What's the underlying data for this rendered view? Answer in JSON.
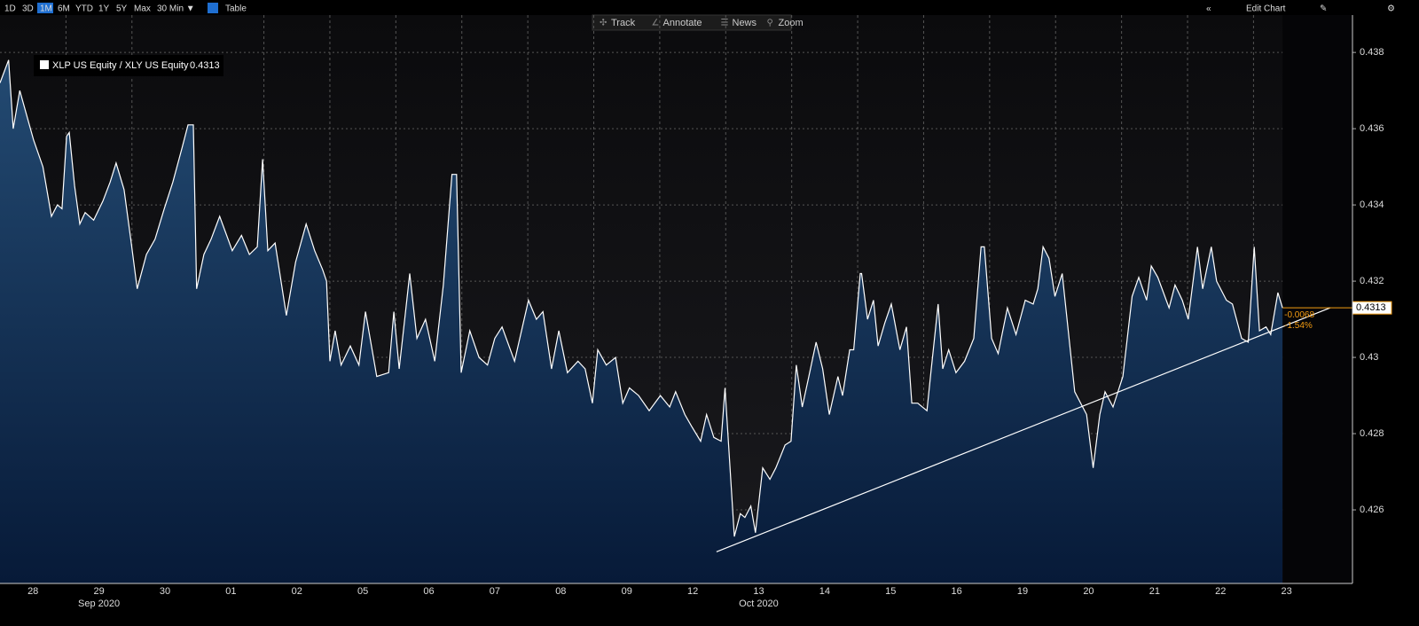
{
  "toolbar": {
    "ranges": [
      "1D",
      "3D",
      "1M",
      "6M",
      "YTD",
      "1Y",
      "5Y",
      "Max",
      "30 Min ▼"
    ],
    "active": "1M",
    "table": "Table",
    "tools": [
      "Track",
      "Annotate",
      "News",
      "Zoom"
    ],
    "edit": "Edit Chart"
  },
  "chart_data": {
    "type": "line",
    "fill": true,
    "series": [
      {
        "name": "XLP US Equity / XLY US Equity",
        "color": "#ffffff",
        "last_value": 0.4313,
        "x": [
          0,
          0.13,
          0.2,
          0.3,
          0.51,
          0.65,
          0.78,
          0.87,
          0.94,
          1.01,
          1.05,
          1.13,
          1.21,
          1.29,
          1.42,
          1.56,
          1.67,
          1.76,
          1.88,
          1.99,
          2.08,
          2.22,
          2.35,
          2.49,
          2.62,
          2.76,
          2.85,
          2.93,
          2.98,
          3.09,
          3.2,
          3.33,
          3.52,
          3.66,
          3.78,
          3.9,
          3.98,
          4.06,
          4.17,
          4.34,
          4.48,
          4.64,
          4.77,
          4.89,
          4.95,
          5,
          5.08,
          5.17,
          5.31,
          5.44,
          5.54,
          5.71,
          5.89,
          5.97,
          6.05,
          6.14,
          6.21,
          6.32,
          6.45,
          6.59,
          6.72,
          6.85,
          6.92,
          6.99,
          7.12,
          7.26,
          7.39,
          7.5,
          7.61,
          7.8,
          8.01,
          8.13,
          8.23,
          8.36,
          8.47,
          8.6,
          8.76,
          8.87,
          8.98,
          9.06,
          9.19,
          9.33,
          9.44,
          9.54,
          9.68,
          9.84,
          10.01,
          10.15,
          10.24,
          10.38,
          10.48,
          10.62,
          10.71,
          10.82,
          10.93,
          10.99,
          11.13,
          11.22,
          11.29,
          11.38,
          11.45,
          11.56,
          11.67,
          11.76,
          11.9,
          11.99,
          12.07,
          12.16,
          12.26,
          12.37,
          12.47,
          12.57,
          12.7,
          12.77,
          12.88,
          12.94,
          13.04,
          13.06,
          13.15,
          13.24,
          13.31,
          13.41,
          13.51,
          13.64,
          13.74,
          13.82,
          13.91,
          14.05,
          14.11,
          14.22,
          14.29,
          14.38,
          14.49,
          14.62,
          14.76,
          14.87,
          14.92,
          15.03,
          15.13,
          15.27,
          15.4,
          15.54,
          15.66,
          15.73,
          15.81,
          15.9,
          15.99,
          16.1,
          16.29,
          16.47,
          16.57,
          16.67,
          16.75,
          16.87,
          17.02,
          17.16,
          17.26,
          17.38,
          17.45,
          17.55,
          17.72,
          17.81,
          17.92,
          18.01,
          18.15,
          18.23,
          18.36,
          18.44,
          18.59,
          18.68,
          18.82,
          18.92,
          19.01,
          19.09,
          19.19,
          19.26,
          19.37,
          19.44
        ],
        "values": [
          0.4372,
          0.4378,
          0.436,
          0.437,
          0.4357,
          0.435,
          0.4337,
          0.434,
          0.4339,
          0.4358,
          0.4359,
          0.4345,
          0.4335,
          0.4338,
          0.4336,
          0.4341,
          0.4346,
          0.4351,
          0.4344,
          0.433,
          0.4318,
          0.4327,
          0.4331,
          0.4339,
          0.4346,
          0.4355,
          0.4361,
          0.4361,
          0.4318,
          0.4327,
          0.4331,
          0.4337,
          0.4328,
          0.4332,
          0.4327,
          0.4329,
          0.4352,
          0.4328,
          0.433,
          0.4311,
          0.4325,
          0.4335,
          0.4328,
          0.4323,
          0.432,
          0.4299,
          0.4307,
          0.4298,
          0.4303,
          0.4298,
          0.4312,
          0.4295,
          0.4296,
          0.4312,
          0.4297,
          0.4311,
          0.4322,
          0.4305,
          0.431,
          0.4299,
          0.4319,
          0.4348,
          0.4348,
          0.4296,
          0.4307,
          0.43,
          0.4298,
          0.4305,
          0.4308,
          0.4299,
          0.4315,
          0.431,
          0.4312,
          0.4297,
          0.4307,
          0.4296,
          0.4299,
          0.4297,
          0.4288,
          0.4302,
          0.4298,
          0.43,
          0.4288,
          0.4292,
          0.429,
          0.4286,
          0.429,
          0.4287,
          0.4291,
          0.4285,
          0.4282,
          0.4278,
          0.4285,
          0.4279,
          0.4278,
          0.4292,
          0.4253,
          0.4259,
          0.4258,
          0.4261,
          0.4254,
          0.4271,
          0.4268,
          0.4271,
          0.4277,
          0.4278,
          0.4298,
          0.4287,
          0.4295,
          0.4304,
          0.4297,
          0.4285,
          0.4295,
          0.429,
          0.4302,
          0.4302,
          0.4322,
          0.4322,
          0.431,
          0.4315,
          0.4303,
          0.4309,
          0.4314,
          0.4302,
          0.4308,
          0.4288,
          0.4288,
          0.4286,
          0.4296,
          0.4314,
          0.4297,
          0.4302,
          0.4296,
          0.4299,
          0.4305,
          0.4329,
          0.4329,
          0.4305,
          0.4301,
          0.4313,
          0.4306,
          0.4315,
          0.4314,
          0.4318,
          0.4329,
          0.4326,
          0.4316,
          0.4322,
          0.4291,
          0.4285,
          0.4271,
          0.4285,
          0.4291,
          0.4287,
          0.4295,
          0.4316,
          0.4321,
          0.4315,
          0.4324,
          0.4321,
          0.4313,
          0.4319,
          0.4315,
          0.431,
          0.4329,
          0.4318,
          0.4329,
          0.432,
          0.4315,
          0.4314,
          0.4305,
          0.4304,
          0.4329,
          0.4307,
          0.4308,
          0.4306,
          0.4317,
          0.4313
        ]
      }
    ],
    "trendline": {
      "color": "#ffffff",
      "x": [
        10.86,
        20.16
      ],
      "values": [
        0.4249,
        0.4313
      ]
    },
    "annotations": [
      "-0.0068",
      "-1.54%"
    ],
    "xlim": [
      0,
      20.5
    ],
    "ylim": [
      0.42407,
      0.43898
    ],
    "yticks": [
      0.426,
      0.428,
      0.43,
      0.432,
      0.434,
      0.436,
      0.438
    ],
    "xticks": [
      {
        "value": 0.5,
        "label": "28"
      },
      {
        "value": 1.5,
        "label": "29"
      },
      {
        "value": 2.5,
        "label": "30"
      },
      {
        "value": 3.5,
        "label": "01"
      },
      {
        "value": 4.5,
        "label": "02"
      },
      {
        "value": 5.5,
        "label": "05"
      },
      {
        "value": 6.5,
        "label": "06"
      },
      {
        "value": 7.5,
        "label": "07"
      },
      {
        "value": 8.5,
        "label": "08"
      },
      {
        "value": 9.5,
        "label": "09"
      },
      {
        "value": 10.5,
        "label": "12"
      },
      {
        "value": 11.5,
        "label": "13"
      },
      {
        "value": 12.5,
        "label": "14"
      },
      {
        "value": 13.5,
        "label": "15"
      },
      {
        "value": 14.5,
        "label": "16"
      },
      {
        "value": 15.5,
        "label": "19"
      },
      {
        "value": 16.5,
        "label": "20"
      },
      {
        "value": 17.5,
        "label": "21"
      },
      {
        "value": 18.5,
        "label": "22"
      },
      {
        "value": 19.5,
        "label": "23"
      }
    ],
    "day_separators": [
      1,
      2,
      3,
      4,
      5,
      6,
      7,
      8,
      9,
      10,
      11,
      12,
      13,
      14,
      15,
      16,
      17,
      18,
      19
    ],
    "month_boundary": 3,
    "month_labels": [
      {
        "label": "Sep 2020",
        "tick": 1
      },
      {
        "label": "Oct 2020",
        "tick": 11
      }
    ],
    "grid": true
  }
}
